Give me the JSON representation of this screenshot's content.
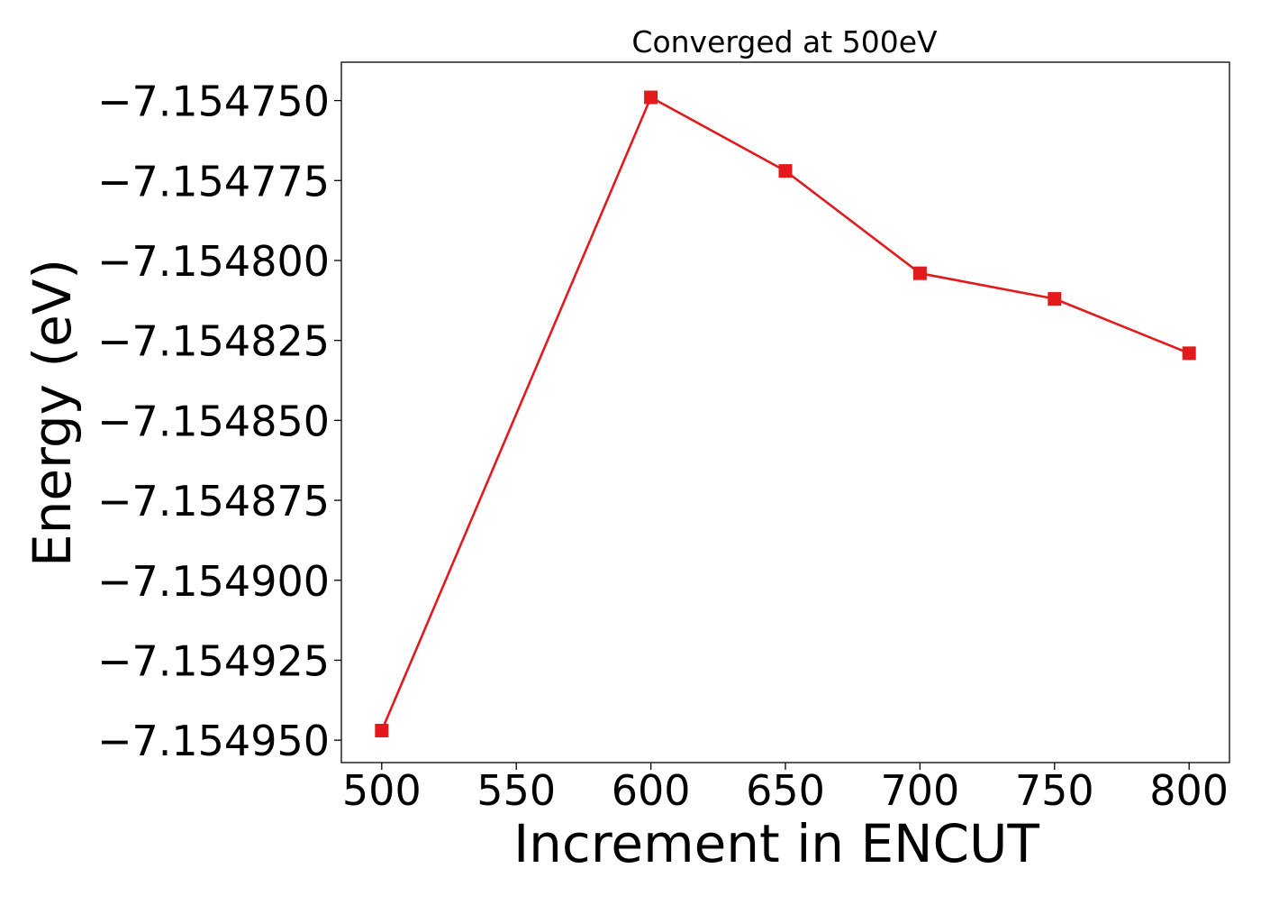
{
  "chart_data": {
    "type": "line",
    "title": "Converged at 500eV",
    "xlabel": "Increment in ENCUT",
    "ylabel": "Energy (eV)",
    "x": [
      500,
      600,
      650,
      700,
      750,
      800
    ],
    "series": [
      {
        "values": [
          -7.154947,
          -7.154749,
          -7.154772,
          -7.154804,
          -7.154812,
          -7.154829
        ],
        "color": "#e31a1c",
        "marker": "square"
      }
    ],
    "xticks": [
      500,
      550,
      600,
      650,
      700,
      750,
      800
    ],
    "xtick_labels": [
      "500",
      "550",
      "600",
      "650",
      "700",
      "750",
      "800"
    ],
    "yticks": [
      -7.15475,
      -7.154775,
      -7.1548,
      -7.154825,
      -7.15485,
      -7.154875,
      -7.1549,
      -7.154925,
      -7.15495
    ],
    "ytick_labels": [
      "−7.154750",
      "−7.154775",
      "−7.154800",
      "−7.154825",
      "−7.154850",
      "−7.154875",
      "−7.154900",
      "−7.154925",
      "−7.154950"
    ],
    "xlim": [
      485,
      815
    ],
    "ylim": [
      -7.154957,
      -7.154738
    ],
    "grid": false,
    "legend": "none"
  }
}
